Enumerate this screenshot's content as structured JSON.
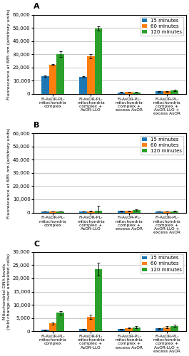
{
  "chart_data": [
    {
      "type": "bar",
      "title": "A",
      "categories": [
        "Fl-AsOR-PL-\nmitochondria\ncomplex",
        "Fl-AsOR-PL-\nmitochondria\ncomplex +\nAsOR-LLO",
        "Fl-AsOR-PL-\nmitochondria\ncomplex +\nexcess AsOR",
        "Fl-AsOR-PL-\nmitochondria\ncomplex +\nAsOR-LLO +\nexcess AsOR"
      ],
      "series": [
        {
          "name": "15 minutes",
          "values": [
            13500,
            13000,
            1200,
            2000
          ],
          "errors": [
            500,
            500,
            200,
            300
          ]
        },
        {
          "name": "60 minutes",
          "values": [
            22000,
            28500,
            1500,
            2000
          ],
          "errors": [
            800,
            1500,
            200,
            300
          ]
        },
        {
          "name": "120 minutes",
          "values": [
            30000,
            49500,
            1200,
            2500
          ],
          "errors": [
            2000,
            1500,
            200,
            400
          ]
        }
      ],
      "y_label": "Fluorescence at 685 nm (arbitrary units)",
      "ylim": [
        0,
        60000
      ],
      "yticks": [
        0,
        {
          "value": 10000,
          "label": "10,000"
        },
        {
          "value": 20000,
          "label": "20,000"
        },
        {
          "value": 30000,
          "label": "30,000"
        },
        {
          "value": 40000,
          "label": "40,000"
        },
        {
          "value": 50000,
          "label": "50,000"
        },
        {
          "value": 60000,
          "label": "60,000"
        }
      ],
      "grid": true,
      "legend": "upper right"
    },
    {
      "type": "bar",
      "title": "B",
      "categories": [
        "Fl-AsOR-PL-\nmitochondria\ncomplex",
        "Fl-AsOR-PL-\nmitochondria\ncomplex +\nAsOR-LLO",
        "Fl-AsOR-PL-\nmitochondria\ncomplex +\nexcess AsOR",
        "Fl-AsOR-PL-\nmitochondria\ncomplex +\nAsOR-LLO +\nexcess AsOR"
      ],
      "series": [
        {
          "name": "15 minutes",
          "values": [
            800,
            800,
            1200,
            800
          ],
          "errors": [
            100,
            100,
            200,
            100
          ]
        },
        {
          "name": "60 minutes",
          "values": [
            800,
            1000,
            1200,
            800
          ],
          "errors": [
            100,
            200,
            200,
            100
          ]
        },
        {
          "name": "120 minutes",
          "values": [
            800,
            1500,
            1800,
            1000
          ],
          "errors": [
            100,
            3500,
            500,
            200
          ]
        }
      ],
      "y_label": "Fluorescence at 685 nm (arbitrary units)",
      "ylim": [
        0,
        60000
      ],
      "yticks": [
        0,
        {
          "value": 10000,
          "label": "10,000"
        },
        {
          "value": 20000,
          "label": "20,000"
        },
        {
          "value": 30000,
          "label": "30,000"
        },
        {
          "value": 40000,
          "label": "40,000"
        },
        {
          "value": 50000,
          "label": "50,000"
        },
        {
          "value": 60000,
          "label": "60,000"
        }
      ],
      "grid": true,
      "legend": "upper right"
    },
    {
      "type": "bar",
      "title": "C",
      "categories": [
        "Fl-AsOR-PL-\nmitochondria\ncomplex",
        "Fl-AsOR-PL-\nmitochondria\ncomplex +\nAsOR-LLO",
        "Fl-AsOR-PL-\nmitochondria\ncomplex +\nexcess AsOR",
        "Fl-AsOR-PL-\nmitochondria\ncomplex +\nAsOR-LLO +\nexcess AsOR"
      ],
      "series": [
        {
          "name": "15 minutes",
          "values": [
            500,
            800,
            800,
            1000
          ],
          "errors": [
            100,
            100,
            100,
            100
          ]
        },
        {
          "name": "60 minutes",
          "values": [
            3000,
            5500,
            1200,
            1500
          ],
          "errors": [
            400,
            800,
            200,
            300
          ]
        },
        {
          "name": "120 minutes",
          "values": [
            7000,
            23500,
            1500,
            2000
          ],
          "errors": [
            700,
            2500,
            300,
            400
          ]
        }
      ],
      "y_label": "Mitochondrial DNA levels\n(fold change over untreated cells)",
      "ylim": [
        0,
        30000
      ],
      "yticks": [
        0,
        {
          "value": 5000,
          "label": "5,000"
        },
        {
          "value": 10000,
          "label": "10,000"
        },
        {
          "value": 15000,
          "label": "15,000"
        },
        {
          "value": 20000,
          "label": "20,000"
        },
        {
          "value": 25000,
          "label": "25,000"
        },
        {
          "value": 30000,
          "label": "30,000"
        }
      ],
      "grid": true,
      "legend": "upper right"
    }
  ]
}
